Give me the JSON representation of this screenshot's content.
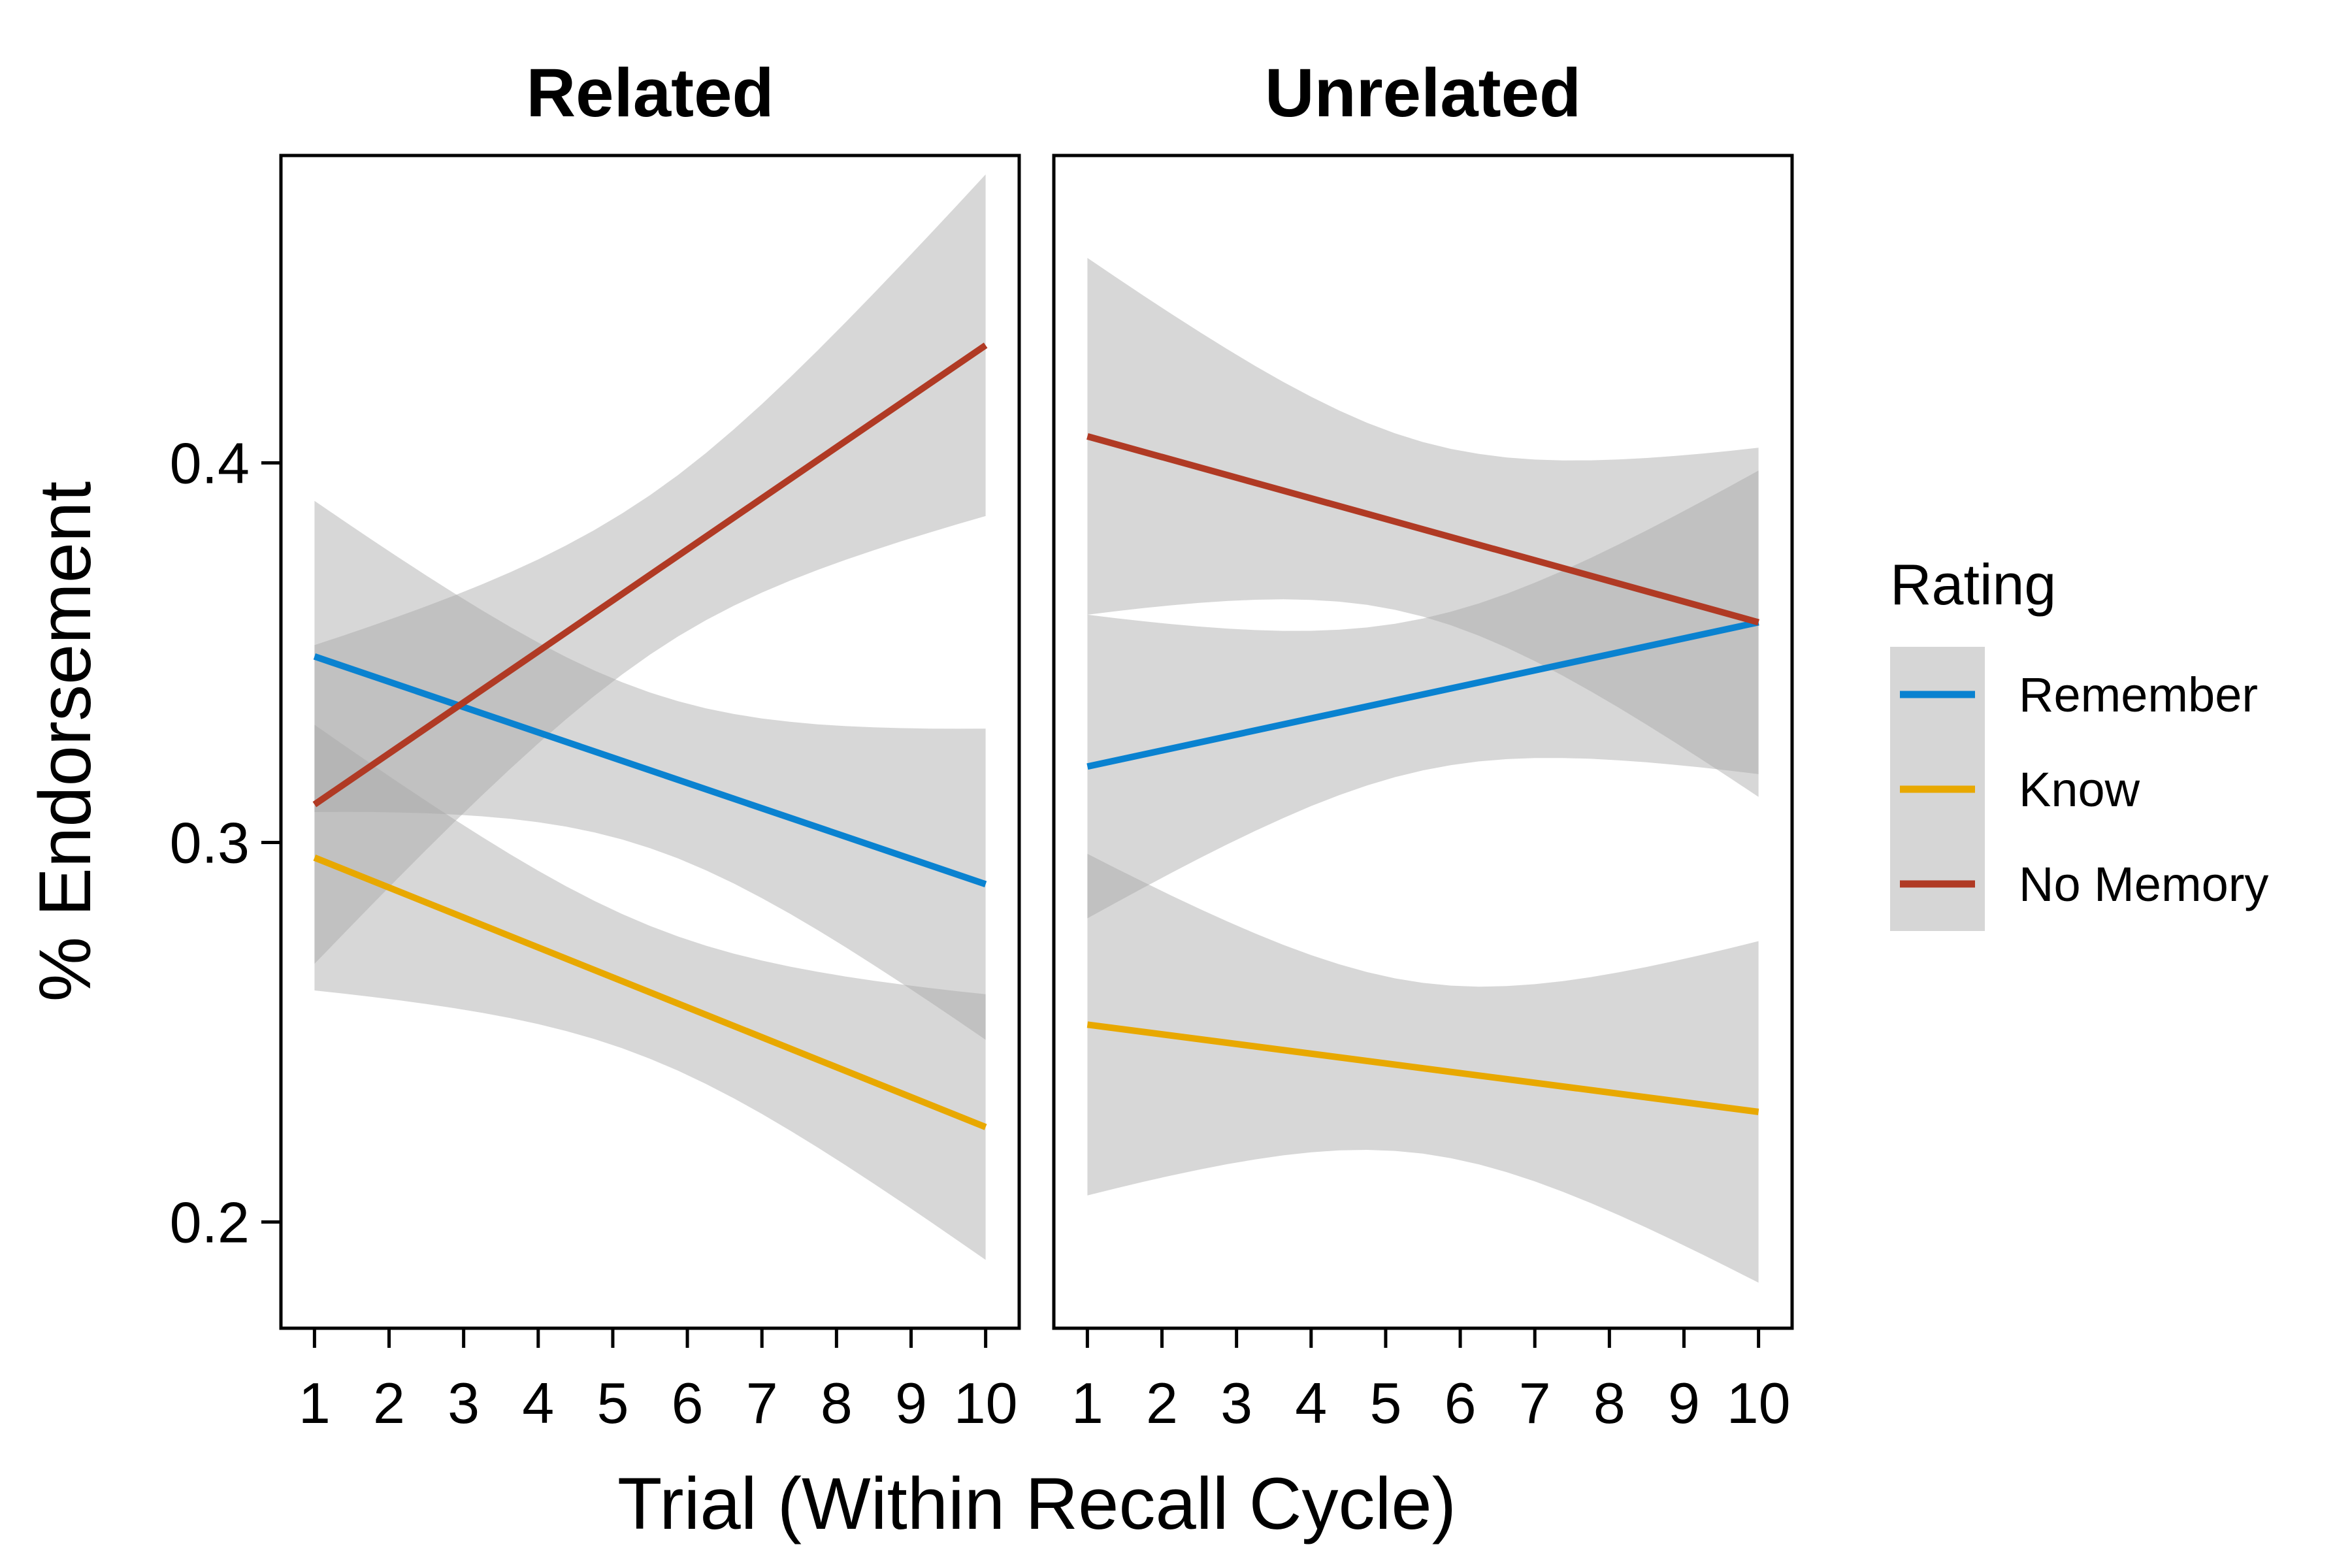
{
  "chart_data": {
    "type": "line",
    "panels": [
      {
        "title": "Related",
        "series": [
          {
            "name": "Remember",
            "x": [
              1,
              10
            ],
            "y": [
              0.349,
              0.289
            ],
            "ci_low": [
              0.309,
              0.248
            ],
            "ci_high": [
              0.39,
              0.33
            ]
          },
          {
            "name": "Know",
            "x": [
              1,
              10
            ],
            "y": [
              0.296,
              0.225
            ],
            "ci_low": [
              0.262,
              0.19
            ],
            "ci_high": [
              0.331,
              0.26
            ]
          },
          {
            "name": "No Memory",
            "x": [
              1,
              10
            ],
            "y": [
              0.31,
              0.431
            ],
            "ci_low": [
              0.266,
              0.387
            ],
            "ci_high": [
              0.352,
              0.476
            ]
          }
        ]
      },
      {
        "title": "Unrelated",
        "series": [
          {
            "name": "Remember",
            "x": [
              1,
              10
            ],
            "y": [
              0.32,
              0.358
            ],
            "ci_low": [
              0.278,
              0.316
            ],
            "ci_high": [
              0.36,
              0.398
            ]
          },
          {
            "name": "Know",
            "x": [
              1,
              10
            ],
            "y": [
              0.252,
              0.229
            ],
            "ci_low": [
              0.206,
              0.183
            ],
            "ci_high": [
              0.297,
              0.274
            ]
          },
          {
            "name": "No Memory",
            "x": [
              1,
              10
            ],
            "y": [
              0.407,
              0.358
            ],
            "ci_low": [
              0.36,
              0.312
            ],
            "ci_high": [
              0.454,
              0.404
            ]
          }
        ]
      }
    ],
    "x_ticks": [
      "1",
      "2",
      "3",
      "4",
      "5",
      "6",
      "7",
      "8",
      "9",
      "10"
    ],
    "y_ticks": [
      "0.2",
      "0.3",
      "0.4"
    ],
    "xlim": [
      0.55,
      10.45
    ],
    "ylim": [
      0.172,
      0.481
    ],
    "xlabel": "Trial (Within Recall Cycle)",
    "ylabel": "% Endorsement",
    "legend": {
      "title": "Rating",
      "entries": [
        "Remember",
        "Know",
        "No Memory"
      ],
      "position": "right"
    },
    "colors": {
      "Remember": "#0a82d0",
      "Know": "#e8a800",
      "No Memory": "#b03a24",
      "ribbon": "#a6a6a6"
    },
    "grid": false
  }
}
